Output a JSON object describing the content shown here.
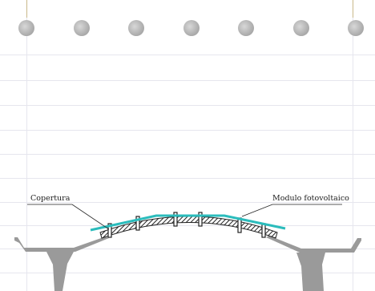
{
  "labels": {
    "left": "Copertura",
    "right": "Modulo fotovoltaico"
  },
  "colors": {
    "background": "#ffffff",
    "grid": "#e6e6ee",
    "dots": "#b8b8b8",
    "pv_module": "#2bbcbc",
    "roof_structure": "#333333",
    "supports": "#9a9a9a"
  },
  "icons": {
    "rings": "notebook-ring-holes"
  }
}
